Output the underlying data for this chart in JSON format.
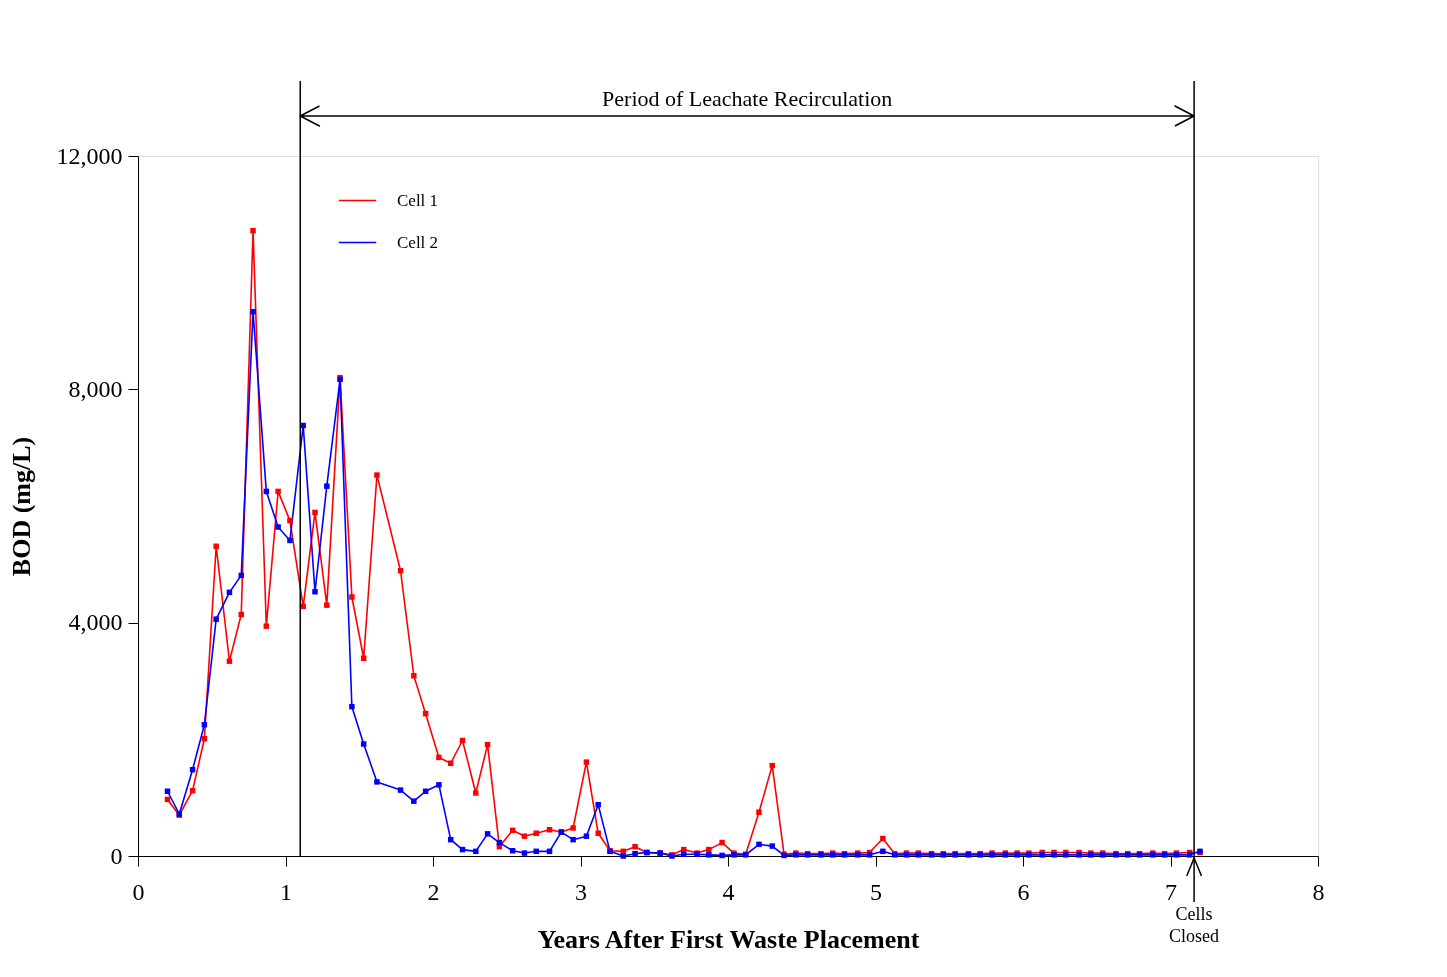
{
  "chart_data": {
    "type": "line",
    "xlabel": "Years After First Waste Placement",
    "ylabel": "BOD (mg/L)",
    "x": [
      0.2,
      0.28,
      0.37,
      0.45,
      0.53,
      0.62,
      0.7,
      0.78,
      0.87,
      0.95,
      1.03,
      1.12,
      1.2,
      1.28,
      1.37,
      1.45,
      1.53,
      1.62,
      1.78,
      1.87,
      1.95,
      2.04,
      2.12,
      2.2,
      2.29,
      2.37,
      2.45,
      2.54,
      2.62,
      2.7,
      2.79,
      2.87,
      2.95,
      3.04,
      3.12,
      3.2,
      3.29,
      3.37,
      3.45,
      3.54,
      3.62,
      3.7,
      3.79,
      3.87,
      3.96,
      4.04,
      4.12,
      4.21,
      4.3,
      4.38,
      4.46,
      4.54,
      4.63,
      4.71,
      4.79,
      4.88,
      4.96,
      5.05,
      5.13,
      5.21,
      5.29,
      5.38,
      5.46,
      5.54,
      5.63,
      5.71,
      5.79,
      5.88,
      5.96,
      6.04,
      6.13,
      6.21,
      6.29,
      6.38,
      6.46,
      6.54,
      6.63,
      6.71,
      6.79,
      6.88,
      6.96,
      7.04,
      7.13,
      7.2
    ],
    "series": [
      {
        "name": "Cell 1",
        "color": "#ff0000",
        "values": [
          970,
          700,
          1120,
          2010,
          5310,
          3340,
          4140,
          10720,
          3940,
          6250,
          5750,
          4280,
          5890,
          4300,
          8200,
          4440,
          3390,
          6530,
          4890,
          3090,
          2440,
          1690,
          1590,
          1980,
          1080,
          1910,
          160,
          440,
          340,
          390,
          450,
          410,
          480,
          1610,
          390,
          90,
          80,
          160,
          60,
          50,
          20,
          110,
          50,
          110,
          230,
          50,
          30,
          750,
          1550,
          30,
          50,
          40,
          40,
          50,
          40,
          50,
          60,
          300,
          40,
          50,
          50,
          40,
          40,
          40,
          40,
          40,
          50,
          50,
          50,
          50,
          60,
          60,
          60,
          60,
          50,
          50,
          40,
          40,
          40,
          50,
          40,
          50,
          60,
          60
        ]
      },
      {
        "name": "Cell 2",
        "color": "#0000ff",
        "values": [
          1110,
          720,
          1480,
          2250,
          4060,
          4520,
          4810,
          9330,
          6250,
          5640,
          5410,
          7380,
          4530,
          6340,
          8170,
          2560,
          1920,
          1270,
          1130,
          940,
          1110,
          1220,
          280,
          110,
          80,
          380,
          230,
          90,
          50,
          80,
          80,
          410,
          280,
          340,
          880,
          80,
          0,
          40,
          60,
          50,
          0,
          30,
          30,
          20,
          10,
          20,
          20,
          200,
          170,
          10,
          20,
          20,
          20,
          20,
          20,
          20,
          20,
          80,
          20,
          20,
          20,
          20,
          20,
          20,
          20,
          20,
          20,
          20,
          20,
          20,
          20,
          20,
          20,
          20,
          20,
          20,
          20,
          20,
          20,
          20,
          20,
          20,
          20,
          80
        ]
      }
    ],
    "xlim": [
      0,
      8
    ],
    "xticks": [
      0,
      1,
      2,
      3,
      4,
      5,
      6,
      7,
      8
    ],
    "ylim": [
      0,
      12000
    ],
    "yticks": [
      0,
      {
        "value": 4000,
        "label": "4,000"
      },
      {
        "value": 8000,
        "label": "8,000"
      },
      {
        "value": 12000,
        "label": "12,000"
      }
    ],
    "ref_lines": [
      {
        "axis": "x",
        "value": 1.1,
        "label": null
      },
      {
        "axis": "x",
        "value": 7.16,
        "label": "Cells Closed"
      }
    ],
    "annotations": [
      "Period of Leachate Recirculation"
    ],
    "grid": false,
    "legend": "top left",
    "marker": "square",
    "line_style": "solid"
  }
}
